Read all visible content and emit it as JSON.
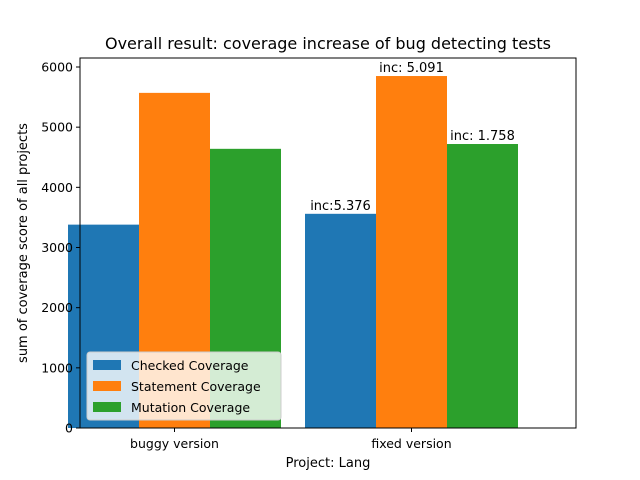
{
  "chart_data": {
    "type": "bar",
    "title": "Overall result: coverage increase of bug detecting tests",
    "xlabel": "Project: Lang",
    "ylabel": "sum of coverage score of all projects",
    "categories": [
      "buggy version",
      "fixed version"
    ],
    "ylim": [
      0,
      6000
    ],
    "yticks": [
      0,
      1000,
      2000,
      3000,
      4000,
      5000,
      6000
    ],
    "grid": false,
    "legend_position": "lower-left",
    "series": [
      {
        "name": "Checked Coverage",
        "color": "#1f77b4",
        "values": [
          3380,
          3560
        ],
        "labels": [
          "",
          "inc:5.376"
        ]
      },
      {
        "name": "Statement Coverage",
        "color": "#ff7f0e",
        "values": [
          5570,
          5850
        ],
        "labels": [
          "",
          "inc: 5.091"
        ]
      },
      {
        "name": "Mutation Coverage",
        "color": "#2ca02c",
        "values": [
          4640,
          4720
        ],
        "labels": [
          "",
          "inc: 1.758"
        ]
      }
    ]
  }
}
